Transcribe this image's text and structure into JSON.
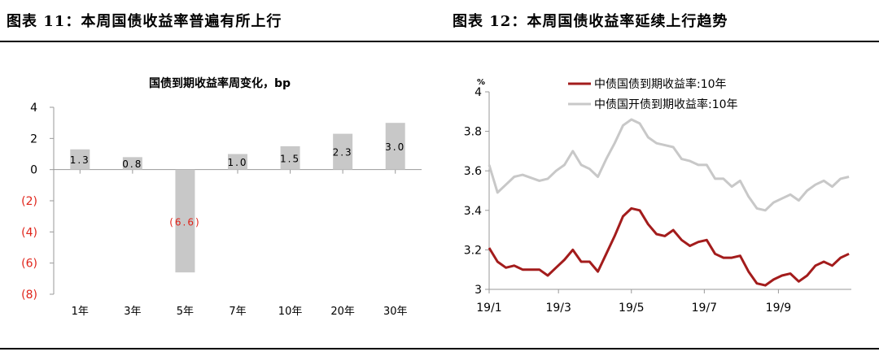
{
  "headers": {
    "left": "图表 11：本周国债收益率普遍有所上行",
    "right": "图表 12：本周国债收益率延续上行趋势"
  },
  "colors": {
    "bar": "#c8c8c8",
    "negative_tick": "#e0241a",
    "series_10y_cgb": "#a31c1c",
    "series_10y_cdb": "#c8c8c8",
    "axis": "#999999"
  },
  "chart_data": [
    {
      "type": "bar",
      "title": "国债到期收益率周变化，bp",
      "categories": [
        "1年",
        "3年",
        "5年",
        "7年",
        "10年",
        "20年",
        "30年"
      ],
      "values": [
        1.3,
        0.8,
        -6.6,
        1.0,
        1.5,
        2.3,
        3.0
      ],
      "value_labels": [
        "1.3",
        "0.8",
        "(6.6)",
        "1.0",
        "1.5",
        "2.3",
        "3.0"
      ],
      "ylim": [
        -8,
        4
      ],
      "yticks": [
        4,
        2,
        0,
        -2,
        -4,
        -6,
        -8
      ],
      "ytick_labels": [
        "4",
        "2",
        "0",
        "(2)",
        "(4)",
        "(6)",
        "(8)"
      ],
      "xlabel": "",
      "ylabel": ""
    },
    {
      "type": "line",
      "title": "",
      "yunit": "%",
      "ylim": [
        3.0,
        4.0
      ],
      "yticks": [
        3,
        3.2,
        3.4,
        3.6,
        3.8,
        4
      ],
      "ytick_labels": [
        "3",
        "3.2",
        "3.4",
        "3.6",
        "3.8",
        "4"
      ],
      "xticks": [
        "19/1",
        "19/3",
        "19/5",
        "19/7",
        "19/9"
      ],
      "x_range": [
        "2019-01-02",
        "2019-11-01"
      ],
      "legend_position": "top",
      "series": [
        {
          "name": "中债国债到期收益率:10年",
          "x": [
            "2019-01-02",
            "2019-01-09",
            "2019-01-16",
            "2019-01-23",
            "2019-01-30",
            "2019-02-13",
            "2019-02-20",
            "2019-02-27",
            "2019-03-06",
            "2019-03-13",
            "2019-03-20",
            "2019-03-27",
            "2019-04-03",
            "2019-04-10",
            "2019-04-17",
            "2019-04-24",
            "2019-05-01",
            "2019-05-08",
            "2019-05-15",
            "2019-05-22",
            "2019-05-29",
            "2019-06-05",
            "2019-06-12",
            "2019-06-19",
            "2019-06-26",
            "2019-07-03",
            "2019-07-10",
            "2019-07-17",
            "2019-07-24",
            "2019-07-31",
            "2019-08-07",
            "2019-08-14",
            "2019-08-21",
            "2019-08-28",
            "2019-09-04",
            "2019-09-11",
            "2019-09-18",
            "2019-09-25",
            "2019-10-02",
            "2019-10-09",
            "2019-10-16",
            "2019-10-23",
            "2019-10-30"
          ],
          "values": [
            3.21,
            3.14,
            3.11,
            3.12,
            3.1,
            3.1,
            3.07,
            3.11,
            3.15,
            3.2,
            3.14,
            3.14,
            3.09,
            3.18,
            3.27,
            3.37,
            3.41,
            3.4,
            3.33,
            3.28,
            3.27,
            3.3,
            3.25,
            3.22,
            3.24,
            3.25,
            3.18,
            3.16,
            3.16,
            3.17,
            3.09,
            3.03,
            3.02,
            3.05,
            3.07,
            3.08,
            3.04,
            3.07,
            3.12,
            3.14,
            3.12,
            3.16,
            3.18
          ]
        },
        {
          "name": "中债国开债到期收益率:10年",
          "x": [
            "2019-01-02",
            "2019-01-09",
            "2019-01-16",
            "2019-01-23",
            "2019-01-30",
            "2019-02-13",
            "2019-02-20",
            "2019-02-27",
            "2019-03-06",
            "2019-03-13",
            "2019-03-20",
            "2019-03-27",
            "2019-04-03",
            "2019-04-10",
            "2019-04-17",
            "2019-04-24",
            "2019-05-01",
            "2019-05-08",
            "2019-05-15",
            "2019-05-22",
            "2019-05-29",
            "2019-06-05",
            "2019-06-12",
            "2019-06-19",
            "2019-06-26",
            "2019-07-03",
            "2019-07-10",
            "2019-07-17",
            "2019-07-24",
            "2019-07-31",
            "2019-08-07",
            "2019-08-14",
            "2019-08-21",
            "2019-08-28",
            "2019-09-04",
            "2019-09-11",
            "2019-09-18",
            "2019-09-25",
            "2019-10-02",
            "2019-10-09",
            "2019-10-16",
            "2019-10-23",
            "2019-10-30"
          ],
          "values": [
            3.63,
            3.49,
            3.53,
            3.57,
            3.58,
            3.55,
            3.56,
            3.6,
            3.63,
            3.7,
            3.63,
            3.61,
            3.57,
            3.66,
            3.74,
            3.83,
            3.86,
            3.84,
            3.77,
            3.74,
            3.73,
            3.72,
            3.66,
            3.65,
            3.63,
            3.63,
            3.56,
            3.56,
            3.52,
            3.55,
            3.47,
            3.41,
            3.4,
            3.44,
            3.46,
            3.48,
            3.45,
            3.5,
            3.53,
            3.55,
            3.52,
            3.56,
            3.57
          ]
        }
      ]
    }
  ]
}
